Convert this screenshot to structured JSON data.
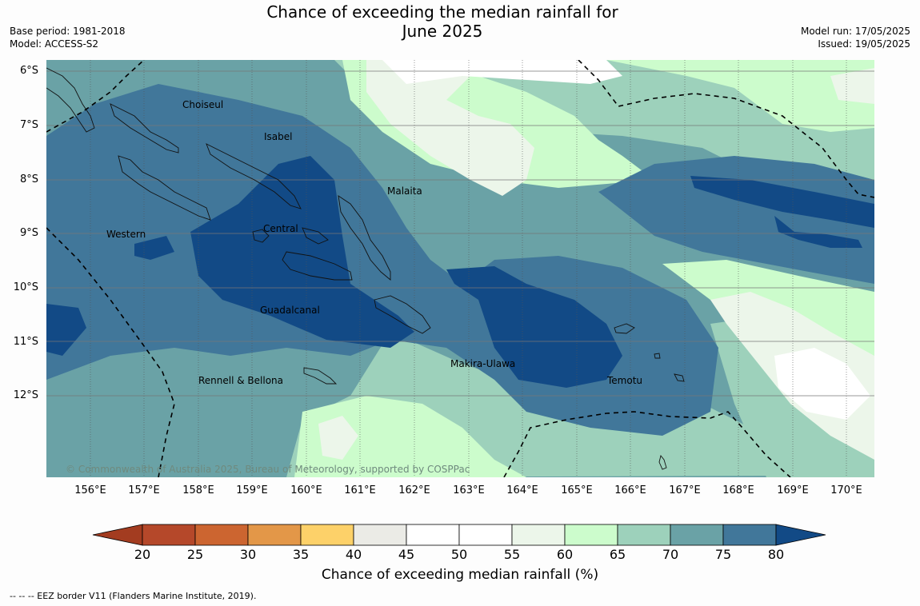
{
  "title": {
    "line1": "Chance of exceeding the median rainfall for",
    "line2": "June 2025"
  },
  "meta_left": {
    "base_period": "Base period: 1981-2018",
    "model": "Model: ACCESS-S2"
  },
  "meta_right": {
    "model_run": "Model run: 17/05/2025",
    "issued": "Issued: 19/05/2025"
  },
  "latitude_labels": [
    "6°S",
    "7°S",
    "8°S",
    "9°S",
    "10°S",
    "11°S",
    "12°S"
  ],
  "longitude_labels": [
    "156°E",
    "157°E",
    "158°E",
    "159°E",
    "160°E",
    "161°E",
    "162°E",
    "163°E",
    "164°E",
    "165°E",
    "166°E",
    "167°E",
    "168°E",
    "169°E",
    "170°E"
  ],
  "place_labels": {
    "choiseul": "Choiseul",
    "isabel": "Isabel",
    "malaita": "Malaita",
    "western": "Western",
    "central": "Central",
    "guadalcanal": "Guadalcanal",
    "rennell": "Rennell & Bellona",
    "makira": "Makira-Ulawa",
    "temotu": "Temotu"
  },
  "copyright": "© Commonwealth of Australia 2025, Bureau of Meteorology, supported by COSPPac",
  "colorbar": {
    "title": "Chance of exceeding median rainfall (%)",
    "ticks": [
      "20",
      "25",
      "30",
      "35",
      "40",
      "45",
      "50",
      "55",
      "60",
      "65",
      "70",
      "75",
      "80"
    ],
    "colors": [
      "#a33c20",
      "#b5482a",
      "#cc6530",
      "#e39748",
      "#fdd169",
      "#ebebe6",
      "#ffffff",
      "#ffffff",
      "#ecf6ea",
      "#ccfccc",
      "#9dd1bb",
      "#6aa2a6",
      "#41779a",
      "#124a86"
    ]
  },
  "footnote": "--  --  -- EEZ border V11 (Flanders Marine Institute, 2019)."
}
